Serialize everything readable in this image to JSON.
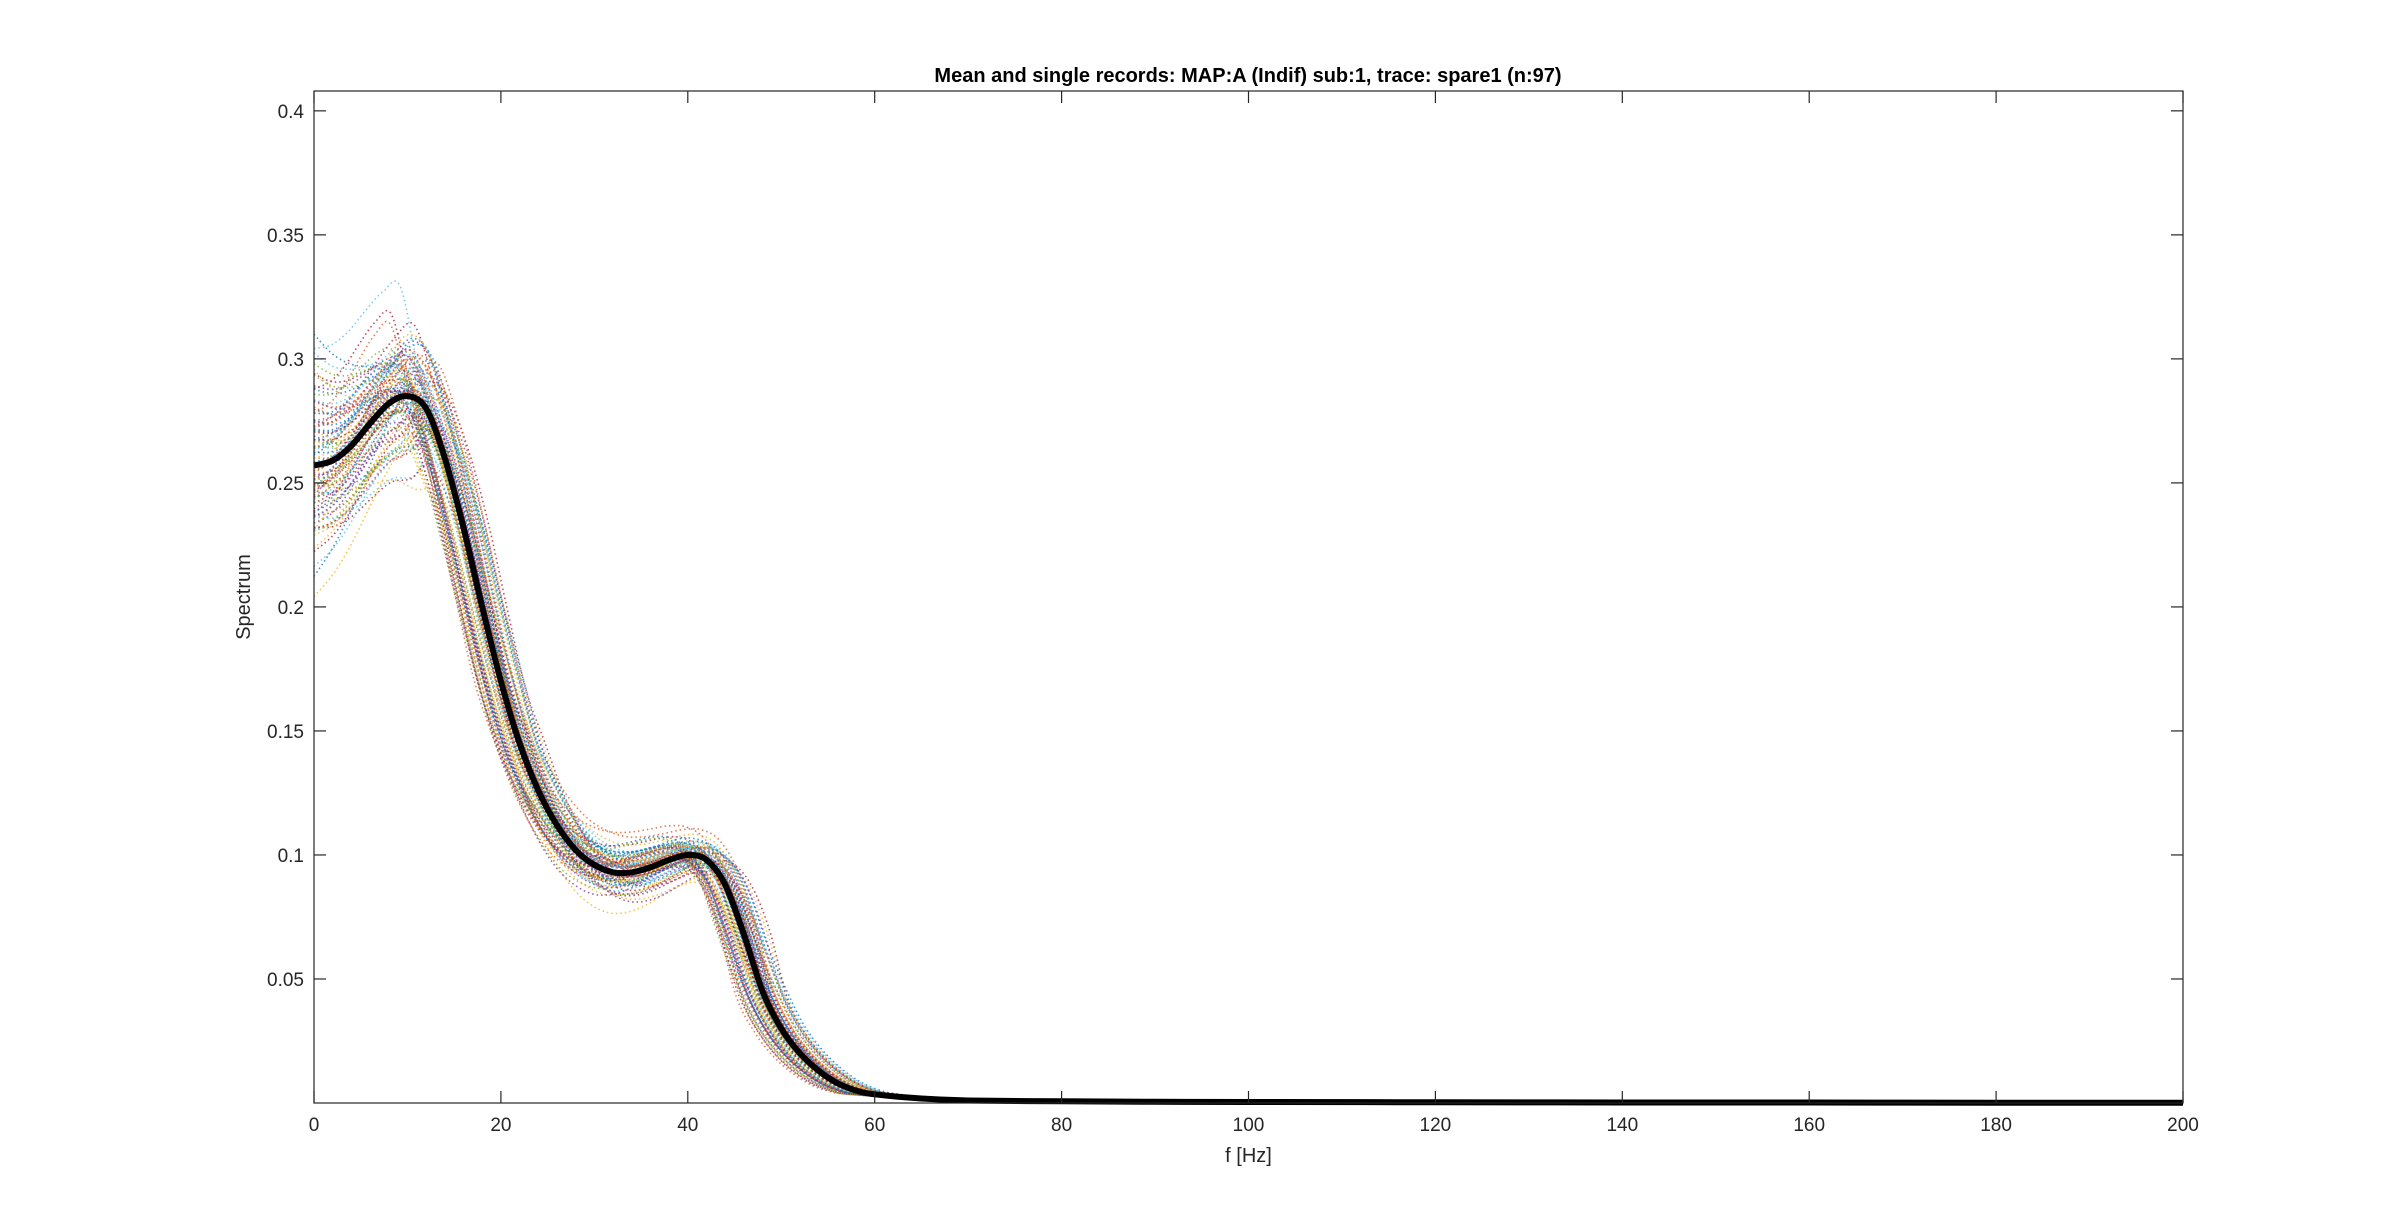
{
  "chart_data": {
    "type": "line",
    "title": "Mean and single records: MAP:A (Indif) sub:1, trace: spare1 (n:97)",
    "xlabel": "f [Hz]",
    "ylabel": "Spectrum",
    "xlim": [
      0,
      200
    ],
    "ylim": [
      0,
      0.408
    ],
    "x_ticks": [
      0,
      20,
      40,
      60,
      80,
      100,
      120,
      140,
      160,
      180,
      200
    ],
    "y_ticks": [
      0.05,
      0.1,
      0.15,
      0.2,
      0.25,
      0.3,
      0.35,
      0.4
    ],
    "grid": false,
    "legend": "none",
    "mean_series": {
      "style": "solid-thick",
      "color": "#000000",
      "x": [
        0,
        2,
        4,
        6,
        8,
        10,
        12,
        14,
        16,
        18,
        20,
        22,
        24,
        26,
        28,
        30,
        32,
        34,
        36,
        38,
        40,
        42,
        44,
        46,
        48,
        50,
        52,
        54,
        56,
        58,
        60,
        65,
        70,
        80,
        90,
        100,
        120,
        140,
        160,
        180,
        200
      ],
      "values": [
        0.257,
        0.259,
        0.265,
        0.274,
        0.282,
        0.285,
        0.28,
        0.26,
        0.232,
        0.2,
        0.17,
        0.145,
        0.126,
        0.112,
        0.102,
        0.096,
        0.093,
        0.093,
        0.095,
        0.098,
        0.1,
        0.098,
        0.088,
        0.068,
        0.045,
        0.03,
        0.02,
        0.013,
        0.008,
        0.005,
        0.0035,
        0.0018,
        0.001,
        0.0007,
        0.0005,
        0.0004,
        0.0003,
        0.0002,
        0.0002,
        0.0001,
        0.0001
      ]
    },
    "single_records": {
      "count": 97,
      "style": "dotted",
      "colors": [
        "#0072BD",
        "#D95319",
        "#EDB120",
        "#7E2F8E",
        "#77AC30",
        "#4DBEEE",
        "#A2142F"
      ]
    }
  }
}
